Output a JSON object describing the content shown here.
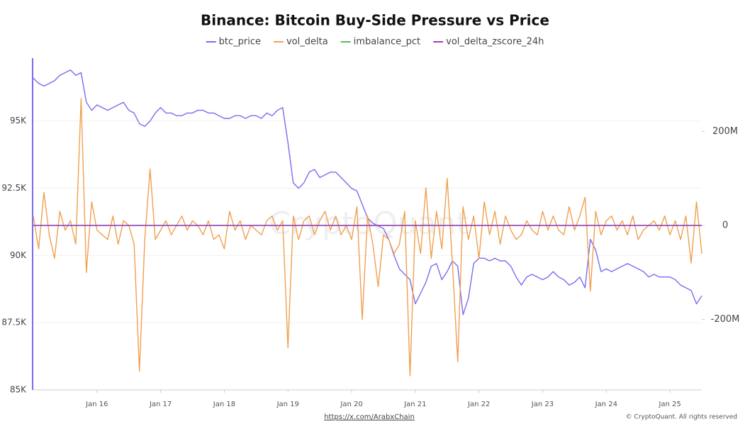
{
  "chart_data": {
    "type": "line",
    "title": "Binance: Bitcoin Buy-Side Pressure vs Price",
    "watermark": "CryptoQuant",
    "source": "https://x.com/ArabxChain",
    "copyright": "© CryptoQuant. All rights reserved",
    "categories": [
      null,
      null,
      null,
      null,
      null,
      null,
      null,
      null,
      null,
      null,
      null,
      null,
      "Jan 16",
      null,
      null,
      null,
      null,
      null,
      null,
      null,
      null,
      null,
      null,
      null,
      "Jan 17",
      null,
      null,
      null,
      null,
      null,
      null,
      null,
      null,
      null,
      null,
      null,
      "Jan 18",
      null,
      null,
      null,
      null,
      null,
      null,
      null,
      null,
      null,
      null,
      null,
      "Jan 19",
      null,
      null,
      null,
      null,
      null,
      null,
      null,
      null,
      null,
      null,
      null,
      "Jan 20",
      null,
      null,
      null,
      null,
      null,
      null,
      null,
      null,
      null,
      null,
      null,
      "Jan 21",
      null,
      null,
      null,
      null,
      null,
      null,
      null,
      null,
      null,
      null,
      null,
      "Jan 22",
      null,
      null,
      null,
      null,
      null,
      null,
      null,
      null,
      null,
      null,
      null,
      "Jan 23",
      null,
      null,
      null,
      null,
      null,
      null,
      null,
      null,
      null,
      null,
      null,
      "Jan 24",
      null,
      null,
      null,
      null,
      null,
      null,
      null,
      null,
      null,
      null,
      null,
      "Jan 25",
      null,
      null,
      null,
      null,
      null,
      null
    ],
    "ylim": [
      85000,
      97340
    ],
    "yticks": [
      {
        "value": 85000,
        "label": "85K"
      },
      {
        "value": 87500,
        "label": "87.5K"
      },
      {
        "value": 90000,
        "label": "90K"
      },
      {
        "value": 92500,
        "label": "92.5K"
      },
      {
        "value": 95000,
        "label": "95K"
      }
    ],
    "y2lim": [
      -350,
      356
    ],
    "y2ticks": [
      {
        "value": -200,
        "label": "-200M"
      },
      0,
      {
        "value": 200,
        "label": "200M"
      }
    ],
    "grid": true,
    "series": [
      {
        "name": "btc_price",
        "color": "#7b6cf0",
        "values": [
          96600,
          96400,
          96300,
          96400,
          96500,
          96700,
          96800,
          96900,
          96700,
          96800,
          95700,
          95400,
          95600,
          95500,
          95400,
          95500,
          95600,
          95700,
          95400,
          95300,
          94900,
          94800,
          95000,
          95300,
          95500,
          95300,
          95300,
          95200,
          95200,
          95300,
          95300,
          95400,
          95400,
          95300,
          95300,
          95200,
          95100,
          95100,
          95200,
          95200,
          95100,
          95200,
          95200,
          95100,
          95300,
          95200,
          95400,
          95500,
          94200,
          92700,
          92500,
          92700,
          93100,
          93200,
          92900,
          93000,
          93100,
          93100,
          92900,
          92700,
          92500,
          92400,
          91900,
          91400,
          91200,
          91100,
          91000,
          90600,
          90000,
          89500,
          89300,
          89100,
          88200,
          88600,
          89000,
          89600,
          89700,
          89100,
          89400,
          89800,
          89600,
          87800,
          88400,
          89700,
          89900,
          89900,
          89800,
          89900,
          89800,
          89800,
          89600,
          89200,
          88900,
          89200,
          89300,
          89200,
          89100,
          89200,
          89400,
          89200,
          89100,
          88900,
          89000,
          89200,
          88800,
          90600,
          90200,
          89400,
          89500,
          89400,
          89500,
          89600,
          89700,
          89600,
          89500,
          89400,
          89200,
          89300,
          89200,
          89200,
          89200,
          89100,
          88900,
          88800,
          88700,
          88200,
          88500
        ]
      },
      {
        "name": "vol_delta",
        "color": "#f0a050",
        "axis": "y2",
        "values": [
          20,
          -50,
          70,
          -20,
          -70,
          30,
          -10,
          10,
          -40,
          270,
          -100,
          50,
          -10,
          -20,
          -30,
          20,
          -40,
          10,
          0,
          -40,
          -310,
          -30,
          120,
          -30,
          -10,
          10,
          -20,
          0,
          20,
          -10,
          10,
          0,
          -20,
          10,
          -30,
          -20,
          -50,
          30,
          -10,
          10,
          -30,
          0,
          -10,
          -20,
          10,
          20,
          -10,
          10,
          -260,
          20,
          -30,
          10,
          20,
          -20,
          10,
          30,
          -10,
          20,
          -20,
          0,
          -30,
          40,
          -200,
          20,
          -40,
          -130,
          -20,
          -30,
          -60,
          -40,
          30,
          -320,
          10,
          -60,
          80,
          -70,
          30,
          -50,
          100,
          -80,
          -290,
          40,
          -30,
          20,
          -70,
          50,
          -20,
          30,
          -40,
          20,
          -10,
          -30,
          -20,
          10,
          -10,
          -20,
          30,
          -10,
          20,
          -10,
          -20,
          40,
          -10,
          20,
          60,
          -140,
          30,
          -20,
          10,
          20,
          -10,
          10,
          -20,
          20,
          -30,
          -10,
          0,
          10,
          -10,
          20,
          -20,
          10,
          -30,
          20,
          -80,
          50,
          -60
        ]
      },
      {
        "name": "imbalance_pct",
        "color": "#5cb85c",
        "axis": "y2",
        "values": [
          0,
          0,
          0,
          0,
          0,
          0,
          0,
          0,
          0,
          0,
          0,
          0,
          0,
          0,
          0,
          0,
          0,
          0,
          0,
          0,
          0,
          0,
          0,
          0,
          0,
          0,
          0,
          0,
          0,
          0,
          0,
          0,
          0,
          0,
          0,
          0,
          0,
          0,
          0,
          0,
          0,
          0,
          0,
          0,
          0,
          0,
          0,
          0,
          0,
          0,
          0,
          0,
          0,
          0,
          0,
          0,
          0,
          0,
          0,
          0,
          0,
          0,
          0,
          0,
          0,
          0,
          0,
          0,
          0,
          0,
          0,
          0,
          0,
          0,
          0,
          0,
          0,
          0,
          0,
          0,
          0,
          0,
          0,
          0,
          0,
          0,
          0,
          0,
          0,
          0,
          0,
          0,
          0,
          0,
          0,
          0,
          0,
          0,
          0,
          0,
          0,
          0,
          0,
          0,
          0,
          0,
          0,
          0,
          0,
          0,
          0,
          0,
          0,
          0,
          0,
          0,
          0,
          0,
          0,
          0,
          0,
          0,
          0,
          0,
          0,
          0,
          0
        ]
      },
      {
        "name": "vol_delta_zscore_24h",
        "color": "#a23cc8",
        "axis": "y2",
        "values": [
          0,
          0,
          0,
          0,
          0,
          0,
          0,
          0,
          0,
          0,
          0,
          0,
          0,
          0,
          0,
          0,
          0,
          0,
          0,
          0,
          0,
          0,
          0,
          0,
          0,
          0,
          0,
          0,
          0,
          0,
          0,
          0,
          0,
          0,
          0,
          0,
          0,
          0,
          0,
          0,
          0,
          0,
          0,
          0,
          0,
          0,
          0,
          0,
          0,
          0,
          0,
          0,
          0,
          0,
          0,
          0,
          0,
          0,
          0,
          0,
          0,
          0,
          0,
          0,
          0,
          0,
          0,
          0,
          0,
          0,
          0,
          0,
          0,
          0,
          0,
          0,
          0,
          0,
          0,
          0,
          0,
          0,
          0,
          0,
          0,
          0,
          0,
          0,
          0,
          0,
          0,
          0,
          0,
          0,
          0,
          0,
          0,
          0,
          0,
          0,
          0,
          0,
          0,
          0,
          0,
          0,
          0,
          0,
          0,
          0,
          0,
          0,
          0,
          0,
          0,
          0,
          0,
          0,
          0,
          0,
          0,
          0,
          0,
          0,
          0,
          0,
          0
        ]
      }
    ]
  }
}
